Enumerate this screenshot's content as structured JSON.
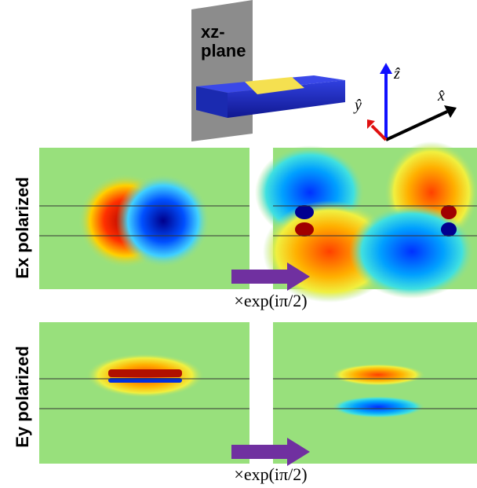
{
  "schematic": {
    "plane_label": [
      "xz-",
      "plane"
    ],
    "axes": {
      "z": "ẑ",
      "y": "ŷ",
      "x": "x̂"
    }
  },
  "rows": [
    {
      "label": "Ex polarized",
      "phase": "×exp(iπ/2)"
    },
    {
      "label": "Ey polarized",
      "phase": "×exp(iπ/2)"
    }
  ]
}
